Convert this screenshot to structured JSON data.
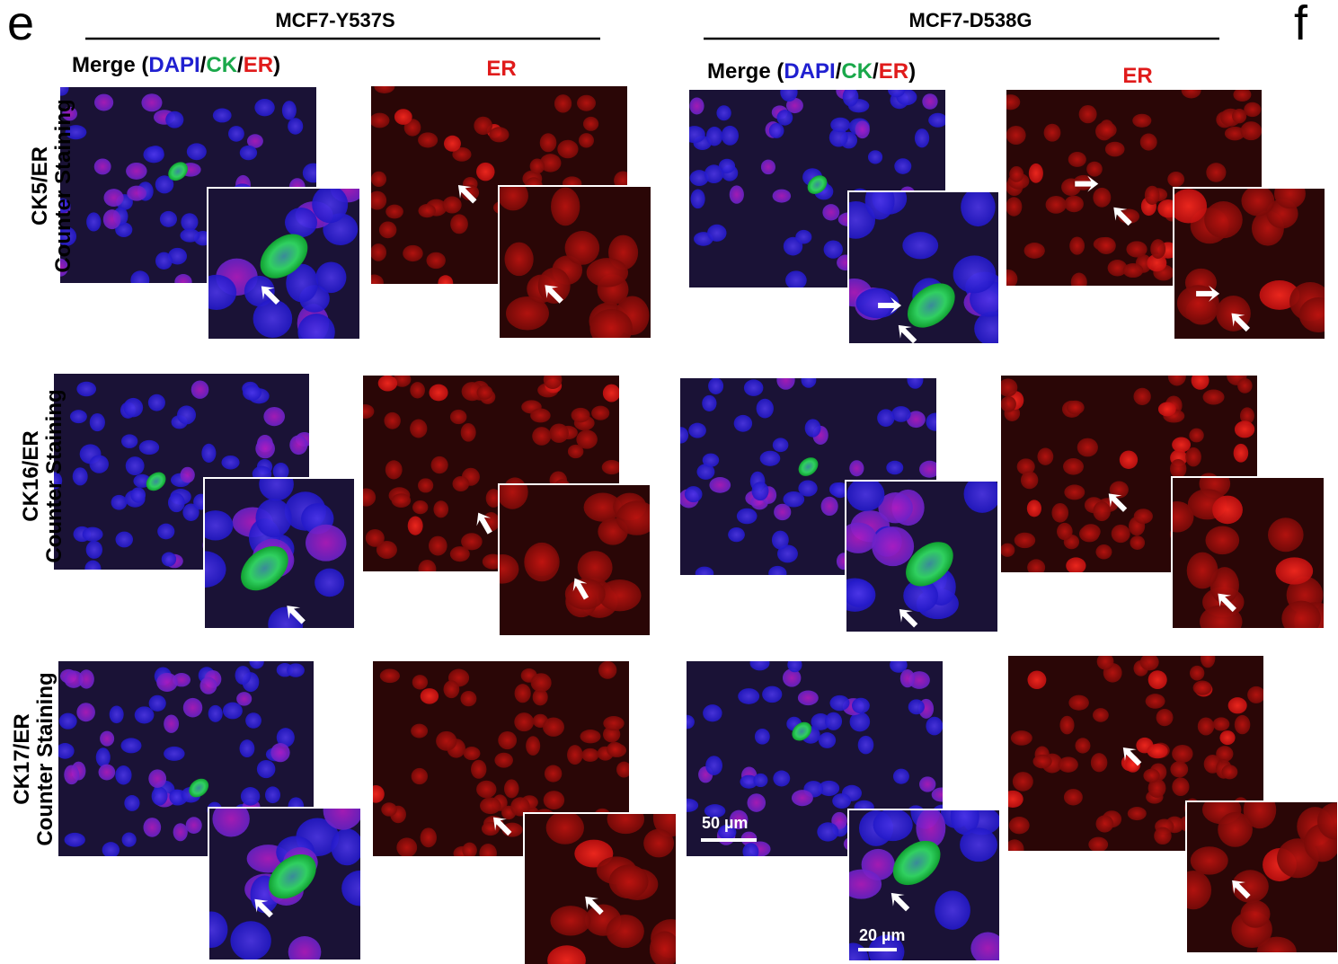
{
  "panel_labels": [
    "e",
    "f"
  ],
  "groups": [
    {
      "title": "MCF7-Y537S",
      "merge_label": [
        "Merge (",
        "DAPI",
        "/",
        "CK",
        "/",
        "ER",
        ")"
      ],
      "er_label": "ER"
    },
    {
      "title": "MCF7-D538G",
      "merge_label": [
        "Merge (",
        "DAPI",
        "/",
        "CK",
        "/",
        "ER",
        ")"
      ],
      "er_label": "ER"
    }
  ],
  "rows": [
    {
      "marker": "CK5/ER",
      "subtitle": "Counter Staining"
    },
    {
      "marker": "CK16/ER",
      "subtitle": "Counter Staining"
    },
    {
      "marker": "CK17/ER",
      "subtitle": "Counter Staining"
    }
  ],
  "scale_bars": [
    "50 µm",
    "20 µm"
  ]
}
